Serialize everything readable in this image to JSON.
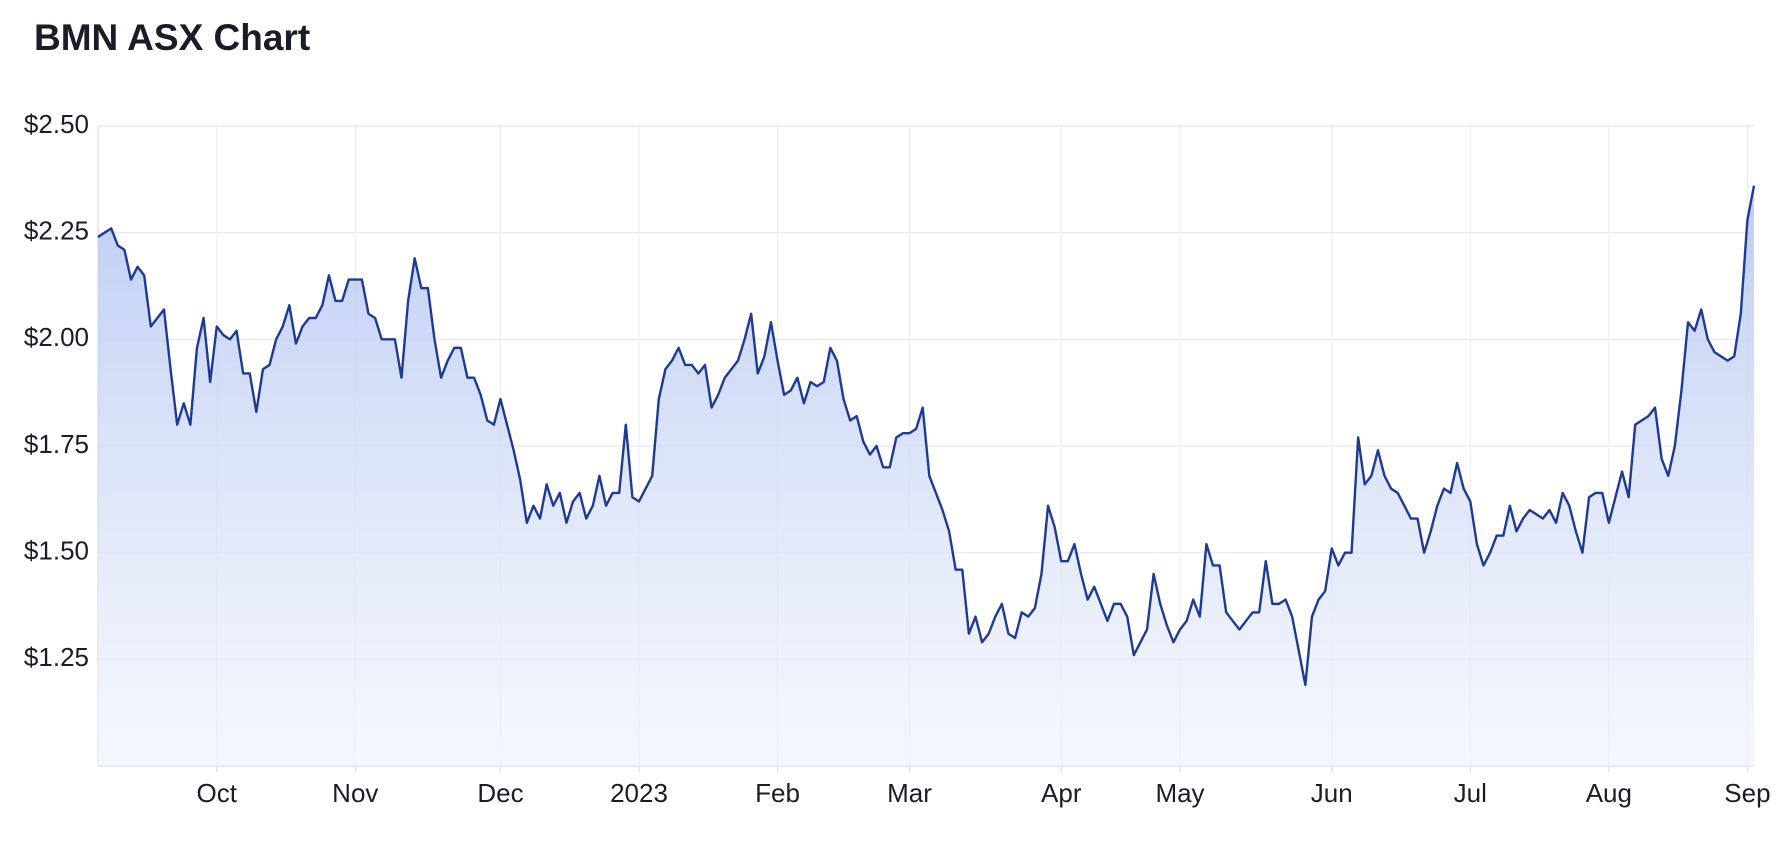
{
  "chart_data": {
    "type": "area",
    "title": "BMN ASX Chart",
    "categories": [
      null,
      null,
      null,
      null,
      null,
      null,
      null,
      null,
      null,
      null,
      null,
      null,
      null,
      null,
      null,
      null,
      null,
      null,
      "Oct",
      null,
      null,
      null,
      null,
      null,
      null,
      null,
      null,
      null,
      null,
      null,
      null,
      null,
      null,
      null,
      null,
      null,
      null,
      null,
      null,
      "Nov",
      null,
      null,
      null,
      null,
      null,
      null,
      null,
      null,
      null,
      null,
      null,
      null,
      null,
      null,
      null,
      null,
      null,
      null,
      null,
      null,
      null,
      "Dec",
      null,
      null,
      null,
      null,
      null,
      null,
      null,
      null,
      null,
      null,
      null,
      null,
      null,
      null,
      null,
      null,
      null,
      null,
      null,
      null,
      "2023",
      null,
      null,
      null,
      null,
      null,
      null,
      null,
      null,
      null,
      null,
      null,
      null,
      null,
      null,
      null,
      null,
      null,
      null,
      null,
      null,
      "Feb",
      null,
      null,
      null,
      null,
      null,
      null,
      null,
      null,
      null,
      null,
      null,
      null,
      null,
      null,
      null,
      null,
      null,
      null,
      null,
      "Mar",
      null,
      null,
      null,
      null,
      null,
      null,
      null,
      null,
      null,
      null,
      null,
      null,
      null,
      null,
      null,
      null,
      null,
      null,
      null,
      null,
      null,
      null,
      "Apr",
      null,
      null,
      null,
      null,
      null,
      null,
      null,
      null,
      null,
      null,
      null,
      null,
      null,
      null,
      null,
      null,
      null,
      "May",
      null,
      null,
      null,
      null,
      null,
      null,
      null,
      null,
      null,
      null,
      null,
      null,
      null,
      null,
      null,
      null,
      null,
      null,
      null,
      null,
      null,
      null,
      "Jun",
      null,
      null,
      null,
      null,
      null,
      null,
      null,
      null,
      null,
      null,
      null,
      null,
      null,
      null,
      null,
      null,
      null,
      null,
      null,
      null,
      "Jul",
      null,
      null,
      null,
      null,
      null,
      null,
      null,
      null,
      null,
      null,
      null,
      null,
      null,
      null,
      null,
      null,
      null,
      null,
      null,
      null,
      "Aug",
      null,
      null,
      null,
      null,
      null,
      null,
      null,
      null,
      null,
      null,
      null,
      null,
      null,
      null,
      null,
      null,
      null,
      null,
      null,
      null,
      "Sep",
      null
    ],
    "values": [
      2.24,
      2.25,
      2.26,
      2.22,
      2.21,
      2.14,
      2.17,
      2.15,
      2.03,
      2.05,
      2.07,
      1.93,
      1.8,
      1.85,
      1.8,
      1.98,
      2.05,
      1.9,
      2.03,
      2.01,
      2.0,
      2.02,
      1.92,
      1.92,
      1.83,
      1.93,
      1.94,
      2.0,
      2.03,
      2.08,
      1.99,
      2.03,
      2.05,
      2.05,
      2.08,
      2.15,
      2.09,
      2.09,
      2.14,
      2.14,
      2.14,
      2.06,
      2.05,
      2.0,
      2.0,
      2.0,
      1.91,
      2.09,
      2.19,
      2.12,
      2.12,
      2.0,
      1.91,
      1.95,
      1.98,
      1.98,
      1.91,
      1.91,
      1.87,
      1.81,
      1.8,
      1.86,
      1.8,
      1.74,
      1.67,
      1.57,
      1.61,
      1.58,
      1.66,
      1.61,
      1.64,
      1.57,
      1.62,
      1.64,
      1.58,
      1.61,
      1.68,
      1.61,
      1.64,
      1.64,
      1.8,
      1.63,
      1.62,
      1.65,
      1.68,
      1.86,
      1.93,
      1.95,
      1.98,
      1.94,
      1.94,
      1.92,
      1.94,
      1.84,
      1.87,
      1.91,
      1.93,
      1.95,
      2.0,
      2.06,
      1.92,
      1.96,
      2.04,
      1.95,
      1.87,
      1.88,
      1.91,
      1.85,
      1.9,
      1.89,
      1.9,
      1.98,
      1.95,
      1.86,
      1.81,
      1.82,
      1.76,
      1.73,
      1.75,
      1.7,
      1.7,
      1.77,
      1.78,
      1.78,
      1.79,
      1.84,
      1.68,
      1.64,
      1.6,
      1.55,
      1.46,
      1.46,
      1.31,
      1.35,
      1.29,
      1.31,
      1.35,
      1.38,
      1.31,
      1.3,
      1.36,
      1.35,
      1.37,
      1.45,
      1.61,
      1.56,
      1.48,
      1.48,
      1.52,
      1.45,
      1.39,
      1.42,
      1.38,
      1.34,
      1.38,
      1.38,
      1.35,
      1.26,
      1.29,
      1.32,
      1.45,
      1.38,
      1.33,
      1.29,
      1.32,
      1.34,
      1.39,
      1.35,
      1.52,
      1.47,
      1.47,
      1.36,
      1.34,
      1.32,
      1.34,
      1.36,
      1.36,
      1.48,
      1.38,
      1.38,
      1.39,
      1.35,
      1.27,
      1.19,
      1.35,
      1.39,
      1.41,
      1.51,
      1.47,
      1.5,
      1.5,
      1.77,
      1.66,
      1.68,
      1.74,
      1.68,
      1.65,
      1.64,
      1.61,
      1.58,
      1.58,
      1.5,
      1.55,
      1.61,
      1.65,
      1.64,
      1.71,
      1.65,
      1.62,
      1.52,
      1.47,
      1.5,
      1.54,
      1.54,
      1.61,
      1.55,
      1.58,
      1.6,
      1.59,
      1.58,
      1.6,
      1.57,
      1.64,
      1.61,
      1.55,
      1.5,
      1.63,
      1.64,
      1.64,
      1.57,
      1.63,
      1.69,
      1.63,
      1.8,
      1.81,
      1.82,
      1.84,
      1.72,
      1.68,
      1.75,
      1.88,
      2.04,
      2.02,
      2.07,
      2.0,
      1.97,
      1.96,
      1.95,
      1.96,
      2.06,
      2.28,
      2.36
    ],
    "color": "#1f3a93",
    "ylim": [
      1.0,
      2.5
    ],
    "yticks": [
      {
        "value": 1.25,
        "label": "$1.25"
      },
      {
        "value": 1.5,
        "label": "$1.50"
      },
      {
        "value": 1.75,
        "label": "$1.75"
      },
      {
        "value": 2.0,
        "label": "$2.00"
      },
      {
        "value": 2.25,
        "label": "$2.25"
      },
      {
        "value": 2.5,
        "label": "$2.50"
      }
    ],
    "grid": true
  }
}
